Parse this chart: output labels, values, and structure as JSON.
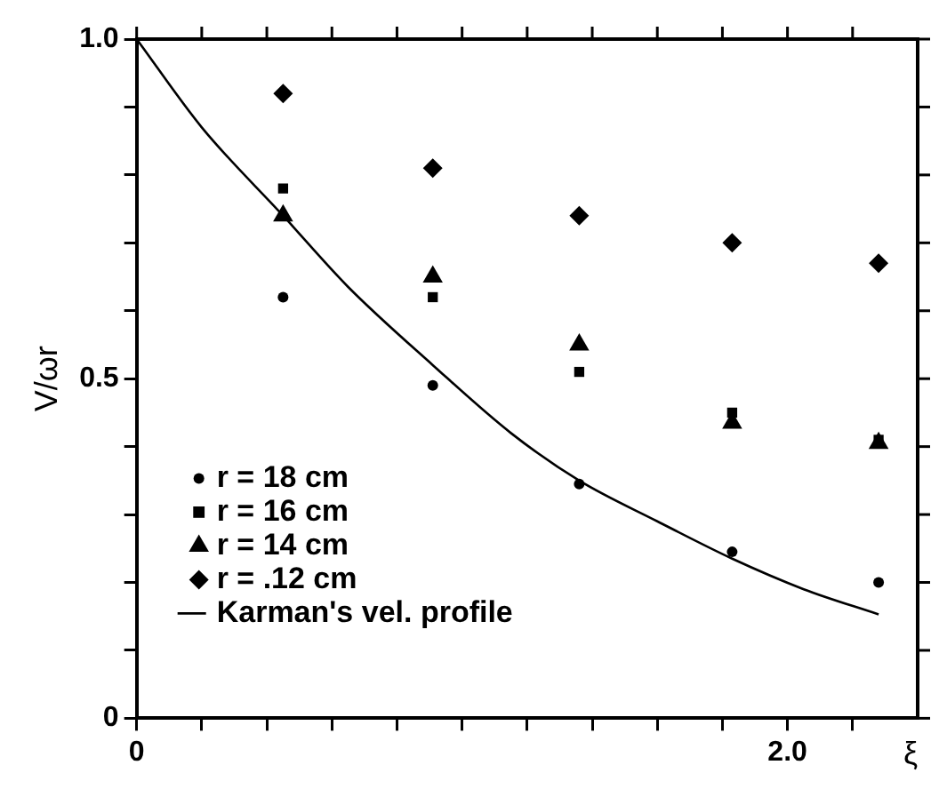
{
  "chart_data": {
    "type": "scatter",
    "xlabel": "ξ",
    "ylabel": "V/ωr",
    "xlim": [
      0,
      2.4
    ],
    "ylim": [
      0,
      1.0
    ],
    "xticks": [
      {
        "value": 0,
        "label": "0"
      },
      {
        "value": 0.2,
        "label": null
      },
      {
        "value": 0.4,
        "label": null
      },
      {
        "value": 0.6,
        "label": null
      },
      {
        "value": 0.8,
        "label": null
      },
      {
        "value": 1.0,
        "label": null
      },
      {
        "value": 1.2,
        "label": null
      },
      {
        "value": 1.4,
        "label": null
      },
      {
        "value": 1.6,
        "label": null
      },
      {
        "value": 1.8,
        "label": null
      },
      {
        "value": 2.0,
        "label": "2.0"
      },
      {
        "value": 2.2,
        "label": null
      }
    ],
    "yticks": [
      {
        "value": 0,
        "label": "0"
      },
      {
        "value": 0.1,
        "label": null
      },
      {
        "value": 0.2,
        "label": null
      },
      {
        "value": 0.3,
        "label": null
      },
      {
        "value": 0.4,
        "label": null
      },
      {
        "value": 0.5,
        "label": "0.5"
      },
      {
        "value": 0.6,
        "label": null
      },
      {
        "value": 0.7,
        "label": null
      },
      {
        "value": 0.8,
        "label": null
      },
      {
        "value": 0.9,
        "label": null
      },
      {
        "value": 1.0,
        "label": "1.0"
      }
    ],
    "grid": false,
    "legend": "bottom left",
    "series": [
      {
        "name": "r = 18 cm",
        "color": "#000000",
        "marker": "circle",
        "x": [
          0.45,
          0.91,
          1.36,
          1.83,
          2.28
        ],
        "values": [
          0.62,
          0.49,
          0.345,
          0.245,
          0.2
        ]
      },
      {
        "name": "r = 16 cm",
        "color": "#000000",
        "marker": "square",
        "x": [
          0.45,
          0.91,
          1.36,
          1.83,
          2.28
        ],
        "values": [
          0.78,
          0.62,
          0.51,
          0.45,
          0.41
        ]
      },
      {
        "name": "r = 14 cm",
        "color": "#000000",
        "marker": "triangle",
        "x": [
          0.45,
          0.91,
          1.36,
          1.83,
          2.28
        ],
        "values": [
          0.74,
          0.65,
          0.55,
          0.435,
          0.405
        ]
      },
      {
        "name": "r = .12 cm",
        "color": "#000000",
        "marker": "diamond",
        "x": [
          0.45,
          0.91,
          1.36,
          1.83,
          2.28
        ],
        "values": [
          0.92,
          0.81,
          0.74,
          0.7,
          0.67
        ]
      },
      {
        "name": "Karman's vel. profile",
        "type": "line",
        "color": "#000000",
        "marker": "none",
        "x": [
          0,
          0.2,
          0.45,
          0.65,
          0.91,
          1.15,
          1.36,
          1.6,
          1.83,
          2.05,
          2.28
        ],
        "values": [
          1.0,
          0.87,
          0.74,
          0.635,
          0.52,
          0.42,
          0.35,
          0.29,
          0.235,
          0.19,
          0.153
        ]
      }
    ]
  }
}
